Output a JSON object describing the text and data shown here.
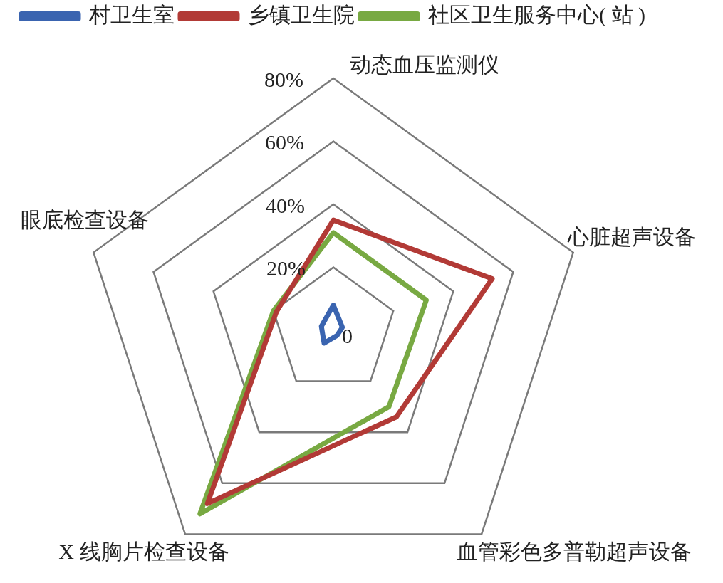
{
  "chart_data": {
    "type": "radar",
    "categories": [
      "动态血压监测仪",
      "心脏超声设备",
      "血管彩色多普勒超声设备",
      "X 线胸片检查设备",
      "眼底检查设备"
    ],
    "series": [
      {
        "name": "村卫生室",
        "color": "#3a64b0",
        "values": [
          8,
          3,
          2,
          5,
          4
        ]
      },
      {
        "name": "乡镇卫生院",
        "color": "#b23a36",
        "values": [
          35,
          53,
          34,
          68,
          19
        ]
      },
      {
        "name": "社区卫生服务中心( 站 )",
        "color": "#78a942",
        "values": [
          31,
          31,
          30,
          72,
          20
        ]
      }
    ],
    "ylim": [
      0,
      80
    ],
    "yticks": [
      0,
      {
        "value": 20,
        "label": "20%"
      },
      {
        "value": 40,
        "label": "40%"
      },
      {
        "value": 60,
        "label": "60%"
      },
      {
        "value": 80,
        "label": "80%"
      }
    ],
    "grid": true,
    "legend": "top",
    "marker": "none",
    "line_style": "solid"
  }
}
